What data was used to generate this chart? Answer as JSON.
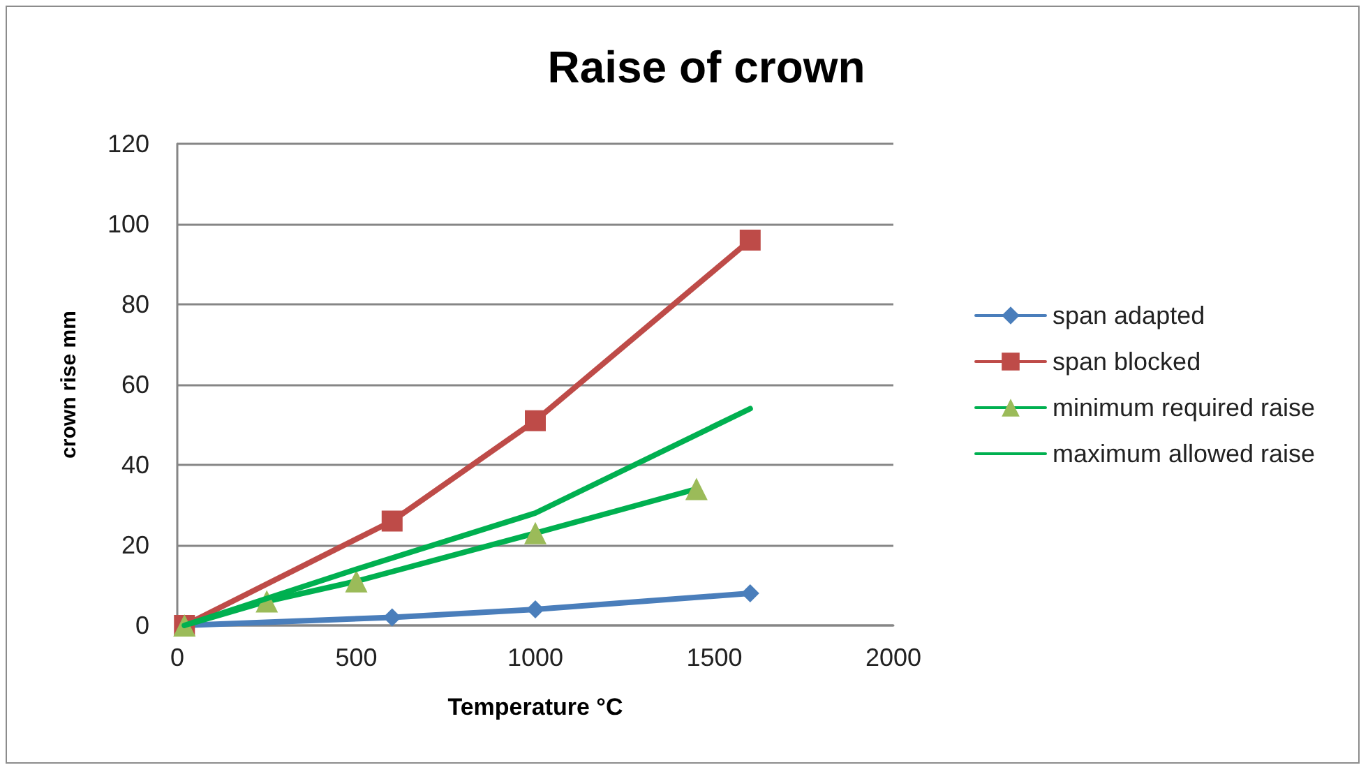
{
  "chart_data": {
    "type": "line",
    "title": "Raise of crown",
    "xlabel": "Temperature °C",
    "ylabel": "crown rise mm",
    "xlim": [
      0,
      2000
    ],
    "xticks": [
      0,
      500,
      1000,
      1500,
      2000
    ],
    "ylim": [
      0,
      120
    ],
    "yticks": [
      0,
      20,
      40,
      60,
      80,
      100,
      120
    ],
    "grid": "y",
    "legend": "right",
    "line_style": "solid",
    "series": [
      {
        "name": "span adapted",
        "color": "#4a7ebb",
        "marker": "diamond",
        "x": [
          20,
          600,
          1000,
          1600
        ],
        "values": [
          0,
          2,
          4,
          8
        ]
      },
      {
        "name": "span blocked",
        "color": "#be4b48",
        "marker": "square",
        "x": [
          20,
          600,
          1000,
          1600
        ],
        "values": [
          0,
          26,
          51,
          96
        ]
      },
      {
        "name": "minimum required raise",
        "color": "#00b050",
        "colors": [
          "#9bbb59",
          "#9bbb59",
          "#9bbb59",
          "#9bbb59",
          "#9bbb59"
        ],
        "marker": "triangle",
        "x": [
          20,
          250,
          500,
          1000,
          1450
        ],
        "values": [
          0,
          6,
          11,
          23,
          34
        ]
      },
      {
        "name": "maximum allowed raise",
        "color": "#00b050",
        "marker": "none",
        "x": [
          20,
          500,
          1000,
          1600
        ],
        "values": [
          0,
          14,
          28,
          54
        ]
      }
    ]
  }
}
